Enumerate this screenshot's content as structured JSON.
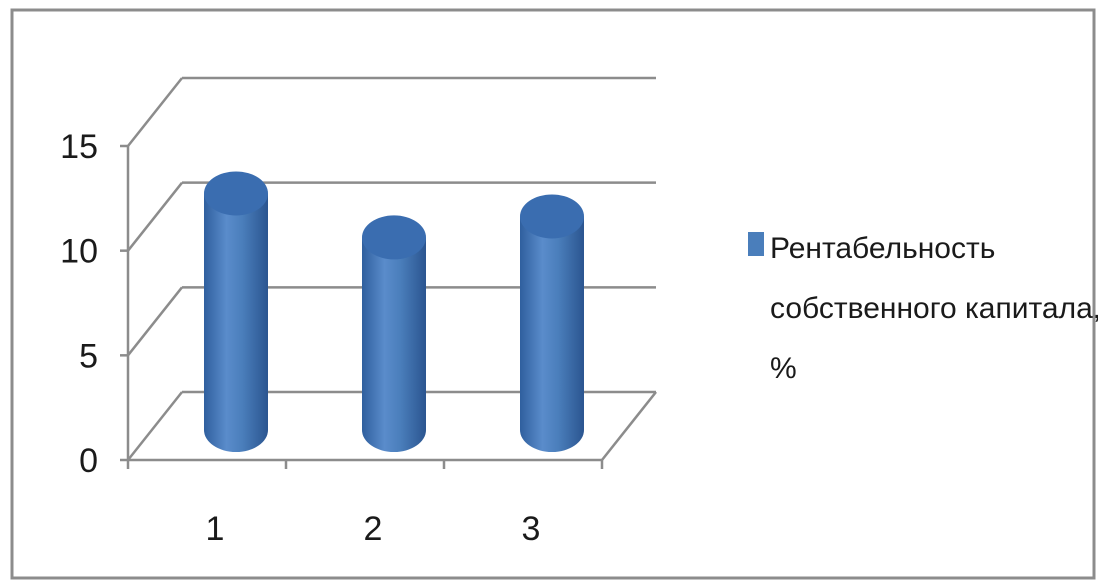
{
  "chart_data": {
    "type": "bar",
    "style": "3d-cylinder",
    "categories": [
      "1",
      "2",
      "3"
    ],
    "series": [
      {
        "name": "Рентабельность собственного капитала, %",
        "values": [
          11.3,
          9.2,
          10.2
        ]
      }
    ],
    "y_ticks": [
      "0",
      "5",
      "10",
      "15"
    ],
    "ylim": [
      0,
      15
    ],
    "grid": true,
    "legend_position": "right",
    "colors": {
      "bar": "#4a7ebb",
      "bar_dark": "#2f5f9e",
      "bar_light": "#6d9ad4",
      "bar_top": "#3a6db0",
      "grid": "#8c8c8c"
    }
  },
  "legend": {
    "lines": [
      "Рентабельность",
      "собственного капитала,",
      "%"
    ]
  }
}
